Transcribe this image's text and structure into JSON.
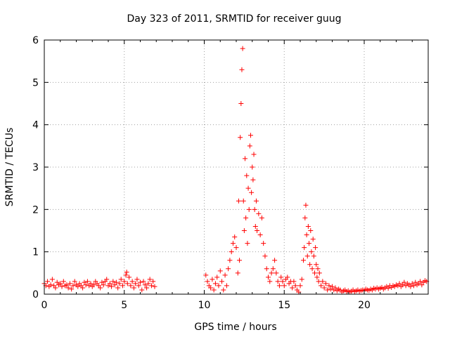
{
  "chart_data": {
    "type": "scatter",
    "title": "Day 323 of 2011, SRMTID for receiver guug",
    "xlabel": "GPS time / hours",
    "ylabel": "SRMTID / TECUs",
    "xlim": [
      0,
      24
    ],
    "ylim": [
      0,
      6
    ],
    "x_ticks": [
      "0",
      "5",
      "10",
      "15",
      "20"
    ],
    "x_tick_values": [
      0,
      5,
      10,
      15,
      20
    ],
    "y_ticks": [
      "0",
      "1",
      "2",
      "3",
      "4",
      "5",
      "6"
    ],
    "y_tick_values": [
      0,
      1,
      2,
      3,
      4,
      5,
      6
    ],
    "grid": true,
    "marker": "plus",
    "color": "#ff0000",
    "series": [
      {
        "points": [
          [
            0.0,
            0.25
          ],
          [
            0.1,
            0.2
          ],
          [
            0.2,
            0.3
          ],
          [
            0.3,
            0.18
          ],
          [
            0.4,
            0.22
          ],
          [
            0.5,
            0.35
          ],
          [
            0.6,
            0.2
          ],
          [
            0.7,
            0.15
          ],
          [
            0.8,
            0.28
          ],
          [
            0.9,
            0.22
          ],
          [
            1.0,
            0.25
          ],
          [
            1.1,
            0.18
          ],
          [
            1.2,
            0.3
          ],
          [
            1.3,
            0.2
          ],
          [
            1.4,
            0.22
          ],
          [
            1.5,
            0.15
          ],
          [
            1.6,
            0.25
          ],
          [
            1.7,
            0.12
          ],
          [
            1.8,
            0.2
          ],
          [
            1.9,
            0.3
          ],
          [
            2.0,
            0.22
          ],
          [
            2.1,
            0.18
          ],
          [
            2.2,
            0.25
          ],
          [
            2.3,
            0.2
          ],
          [
            2.4,
            0.15
          ],
          [
            2.5,
            0.28
          ],
          [
            2.6,
            0.22
          ],
          [
            2.7,
            0.3
          ],
          [
            2.8,
            0.2
          ],
          [
            2.9,
            0.25
          ],
          [
            3.0,
            0.18
          ],
          [
            3.1,
            0.22
          ],
          [
            3.2,
            0.3
          ],
          [
            3.3,
            0.25
          ],
          [
            3.4,
            0.2
          ],
          [
            3.5,
            0.15
          ],
          [
            3.6,
            0.28
          ],
          [
            3.7,
            0.22
          ],
          [
            3.8,
            0.3
          ],
          [
            3.9,
            0.35
          ],
          [
            4.0,
            0.2
          ],
          [
            4.1,
            0.25
          ],
          [
            4.2,
            0.18
          ],
          [
            4.3,
            0.3
          ],
          [
            4.4,
            0.22
          ],
          [
            4.5,
            0.28
          ],
          [
            4.6,
            0.15
          ],
          [
            4.7,
            0.25
          ],
          [
            4.8,
            0.35
          ],
          [
            4.9,
            0.2
          ],
          [
            5.0,
            0.3
          ],
          [
            5.1,
            0.45
          ],
          [
            5.15,
            0.52
          ],
          [
            5.2,
            0.25
          ],
          [
            5.3,
            0.4
          ],
          [
            5.4,
            0.2
          ],
          [
            5.5,
            0.3
          ],
          [
            5.6,
            0.15
          ],
          [
            5.7,
            0.25
          ],
          [
            5.8,
            0.35
          ],
          [
            5.9,
            0.2
          ],
          [
            6.0,
            0.28
          ],
          [
            6.1,
            0.1
          ],
          [
            6.2,
            0.3
          ],
          [
            6.3,
            0.22
          ],
          [
            6.4,
            0.15
          ],
          [
            6.5,
            0.25
          ],
          [
            6.6,
            0.35
          ],
          [
            6.7,
            0.2
          ],
          [
            6.8,
            0.3
          ],
          [
            6.9,
            0.18
          ],
          [
            10.1,
            0.45
          ],
          [
            10.2,
            0.3
          ],
          [
            10.3,
            0.2
          ],
          [
            10.4,
            0.15
          ],
          [
            10.5,
            0.35
          ],
          [
            10.6,
            0.1
          ],
          [
            10.7,
            0.25
          ],
          [
            10.8,
            0.4
          ],
          [
            10.9,
            0.2
          ],
          [
            11.0,
            0.55
          ],
          [
            11.1,
            0.3
          ],
          [
            11.2,
            0.1
          ],
          [
            11.3,
            0.45
          ],
          [
            11.4,
            0.2
          ],
          [
            11.5,
            0.6
          ],
          [
            11.6,
            0.8
          ],
          [
            11.7,
            1.0
          ],
          [
            11.8,
            1.2
          ],
          [
            11.9,
            1.35
          ],
          [
            12.0,
            1.1
          ],
          [
            12.1,
            0.5
          ],
          [
            12.15,
            2.2
          ],
          [
            12.2,
            0.8
          ],
          [
            12.25,
            3.7
          ],
          [
            12.3,
            4.5
          ],
          [
            12.35,
            5.3
          ],
          [
            12.4,
            5.8
          ],
          [
            12.45,
            2.2
          ],
          [
            12.5,
            1.5
          ],
          [
            12.55,
            3.2
          ],
          [
            12.6,
            1.8
          ],
          [
            12.65,
            2.8
          ],
          [
            12.7,
            1.2
          ],
          [
            12.75,
            2.5
          ],
          [
            12.8,
            2.0
          ],
          [
            12.85,
            3.5
          ],
          [
            12.9,
            3.75
          ],
          [
            12.95,
            2.4
          ],
          [
            13.0,
            3.0
          ],
          [
            13.05,
            2.7
          ],
          [
            13.1,
            3.3
          ],
          [
            13.15,
            2.0
          ],
          [
            13.2,
            1.6
          ],
          [
            13.25,
            2.2
          ],
          [
            13.3,
            1.5
          ],
          [
            13.4,
            1.9
          ],
          [
            13.5,
            1.4
          ],
          [
            13.6,
            1.8
          ],
          [
            13.7,
            1.2
          ],
          [
            13.8,
            0.9
          ],
          [
            13.9,
            0.6
          ],
          [
            14.0,
            0.4
          ],
          [
            14.1,
            0.3
          ],
          [
            14.2,
            0.5
          ],
          [
            14.3,
            0.6
          ],
          [
            14.4,
            0.8
          ],
          [
            14.5,
            0.5
          ],
          [
            14.6,
            0.3
          ],
          [
            14.7,
            0.2
          ],
          [
            14.8,
            0.4
          ],
          [
            14.9,
            0.3
          ],
          [
            15.0,
            0.2
          ],
          [
            15.1,
            0.35
          ],
          [
            15.2,
            0.4
          ],
          [
            15.3,
            0.25
          ],
          [
            15.4,
            0.3
          ],
          [
            15.5,
            0.15
          ],
          [
            15.6,
            0.3
          ],
          [
            15.7,
            0.2
          ],
          [
            15.8,
            0.1
          ],
          [
            15.9,
            0.05
          ],
          [
            16.0,
            0.2
          ],
          [
            16.1,
            0.35
          ],
          [
            16.2,
            0.8
          ],
          [
            16.25,
            1.1
          ],
          [
            16.3,
            1.8
          ],
          [
            16.35,
            2.1
          ],
          [
            16.4,
            1.4
          ],
          [
            16.45,
            0.9
          ],
          [
            16.5,
            1.6
          ],
          [
            16.55,
            1.2
          ],
          [
            16.6,
            0.7
          ],
          [
            16.65,
            1.5
          ],
          [
            16.7,
            1.0
          ],
          [
            16.75,
            0.6
          ],
          [
            16.8,
            1.3
          ],
          [
            16.85,
            0.9
          ],
          [
            16.9,
            0.5
          ],
          [
            16.95,
            1.1
          ],
          [
            17.0,
            0.7
          ],
          [
            17.05,
            0.4
          ],
          [
            17.1,
            0.6
          ],
          [
            17.15,
            0.3
          ],
          [
            17.2,
            0.5
          ],
          [
            17.3,
            0.2
          ],
          [
            17.4,
            0.3
          ],
          [
            17.5,
            0.15
          ],
          [
            17.6,
            0.25
          ],
          [
            17.7,
            0.1
          ],
          [
            17.8,
            0.2
          ],
          [
            17.9,
            0.12
          ],
          [
            18.0,
            0.18
          ],
          [
            18.1,
            0.1
          ],
          [
            18.2,
            0.15
          ],
          [
            18.3,
            0.08
          ],
          [
            18.4,
            0.12
          ],
          [
            18.5,
            0.1
          ],
          [
            18.6,
            0.05
          ],
          [
            18.7,
            0.08
          ],
          [
            18.8,
            0.1
          ],
          [
            18.9,
            0.06
          ],
          [
            19.0,
            0.08
          ],
          [
            19.1,
            0.05
          ],
          [
            19.2,
            0.07
          ],
          [
            19.3,
            0.1
          ],
          [
            19.4,
            0.06
          ],
          [
            19.5,
            0.08
          ],
          [
            19.6,
            0.1
          ],
          [
            19.7,
            0.07
          ],
          [
            19.8,
            0.09
          ],
          [
            19.9,
            0.1
          ],
          [
            20.0,
            0.08
          ],
          [
            20.1,
            0.12
          ],
          [
            20.2,
            0.1
          ],
          [
            20.3,
            0.09
          ],
          [
            20.4,
            0.12
          ],
          [
            20.5,
            0.1
          ],
          [
            20.6,
            0.14
          ],
          [
            20.7,
            0.12
          ],
          [
            20.8,
            0.15
          ],
          [
            20.9,
            0.12
          ],
          [
            21.0,
            0.14
          ],
          [
            21.1,
            0.16
          ],
          [
            21.2,
            0.12
          ],
          [
            21.3,
            0.15
          ],
          [
            21.4,
            0.18
          ],
          [
            21.5,
            0.14
          ],
          [
            21.6,
            0.2
          ],
          [
            21.7,
            0.16
          ],
          [
            21.8,
            0.2
          ],
          [
            21.9,
            0.18
          ],
          [
            22.0,
            0.22
          ],
          [
            22.1,
            0.2
          ],
          [
            22.2,
            0.25
          ],
          [
            22.3,
            0.18
          ],
          [
            22.4,
            0.22
          ],
          [
            22.5,
            0.28
          ],
          [
            22.6,
            0.2
          ],
          [
            22.7,
            0.25
          ],
          [
            22.8,
            0.22
          ],
          [
            22.9,
            0.18
          ],
          [
            23.0,
            0.25
          ],
          [
            23.1,
            0.2
          ],
          [
            23.2,
            0.28
          ],
          [
            23.3,
            0.22
          ],
          [
            23.4,
            0.25
          ],
          [
            23.5,
            0.3
          ],
          [
            23.6,
            0.22
          ],
          [
            23.7,
            0.28
          ],
          [
            23.8,
            0.32
          ],
          [
            23.9,
            0.3
          ]
        ]
      }
    ]
  }
}
